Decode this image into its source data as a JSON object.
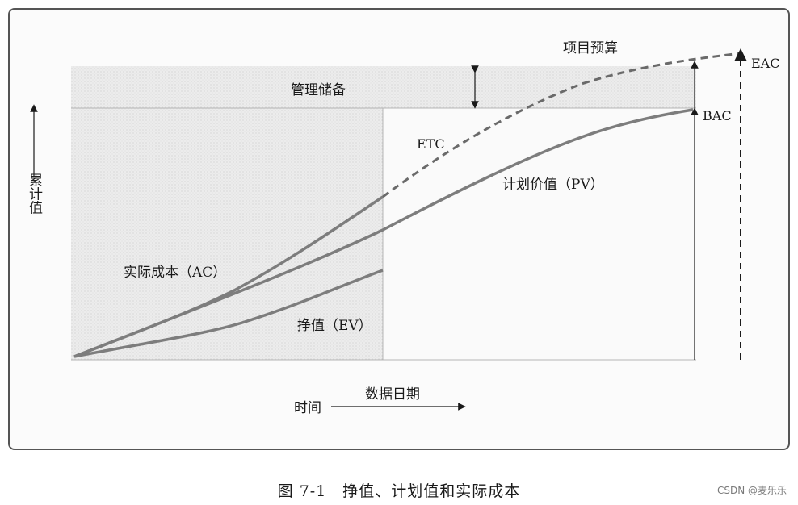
{
  "diagram": {
    "y_axis_label": "累计值",
    "x_axis_label": "时间",
    "project_budget_label": "项目预算",
    "management_reserve_label": "管理储备",
    "data_date_label": "数据日期",
    "etc_label": "ETC",
    "pv_label": "计划价值（PV）",
    "ac_label": "实际成本（AC）",
    "ev_label": "挣值（EV）",
    "bac_label": "BAC",
    "eac_label": "EAC"
  },
  "caption": "图 7-1　挣值、计划值和实际成本",
  "watermark": "CSDN @麦乐乐",
  "colors": {
    "curve": "#7d7d7d",
    "frame": "#555555",
    "shade": "#e9e9e9"
  }
}
